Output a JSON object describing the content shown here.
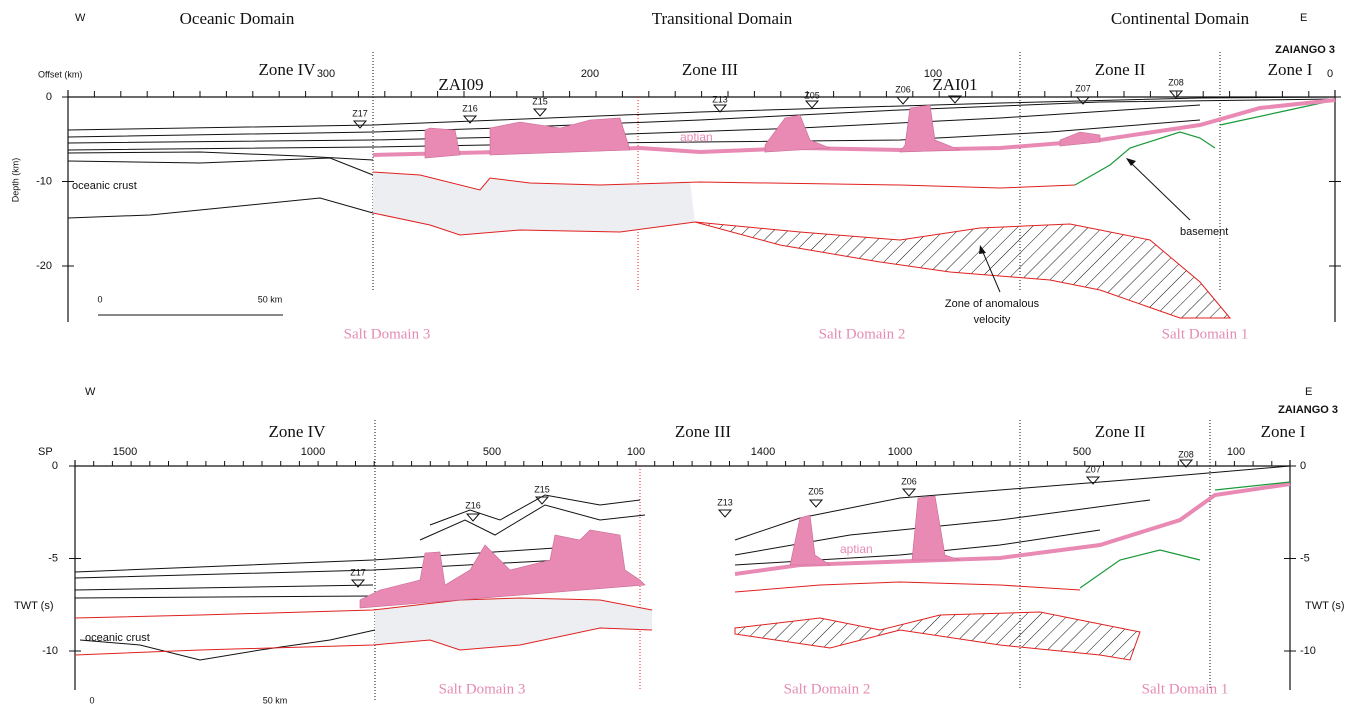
{
  "top": {
    "w": "W",
    "e": "E",
    "domains": [
      "Oceanic Domain",
      "Transitional Domain",
      "Continental Domain"
    ],
    "well": "ZAIANGO 3",
    "axis_label": "Offset (km)",
    "offsets": [
      300,
      200,
      100,
      0
    ],
    "zones": [
      "Zone IV",
      "Zone III",
      "Zone II",
      "Zone I"
    ],
    "depth_label": "Depth (km)",
    "depths": [
      0,
      -10,
      -20
    ],
    "wells": [
      "Z17",
      "ZAI09",
      "Z16",
      "Z15",
      "Z13",
      "Z05",
      "Z06",
      "ZAI01",
      "Z07",
      "Z08"
    ],
    "aptian": "aptian",
    "oceanic_crust": "oceanic crust",
    "basement": "basement",
    "anomalous": [
      "Zone of anomalous",
      "velocity"
    ],
    "salt_domains": [
      "Salt Domain 3",
      "Salt Domain 2",
      "Salt Domain 1"
    ],
    "scale": [
      "0",
      "50 km"
    ]
  },
  "bottom": {
    "w": "W",
    "e": "E",
    "well": "ZAIANGO 3",
    "axis_label": "SP",
    "sp": [
      1500,
      1000,
      500,
      100,
      1400,
      1000,
      500,
      100
    ],
    "zones": [
      "Zone IV",
      "Zone III",
      "Zone II",
      "Zone I"
    ],
    "twt_label": "TWT (s)",
    "twt": [
      0,
      -5,
      -10
    ],
    "wells": [
      "Z17",
      "Z16",
      "Z15",
      "Z13",
      "Z05",
      "Z06",
      "Z07",
      "Z08"
    ],
    "aptian": "aptian",
    "oceanic_crust": "oceanic crust",
    "salt_domains": [
      "Salt Domain 3",
      "Salt Domain 2",
      "Salt Domain 1"
    ],
    "scale": [
      "0",
      "50 km"
    ]
  }
}
